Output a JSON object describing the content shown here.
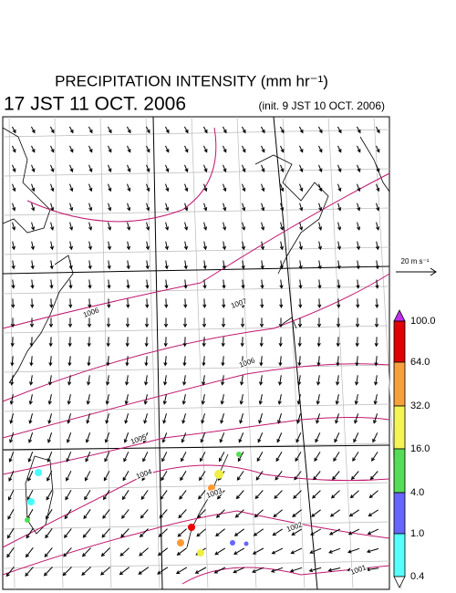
{
  "header": {
    "title": "PRECIPITATION INTENSITY (mm hr⁻¹)",
    "valid_time": "17 JST 11 OCT. 2006",
    "init_time": "(init. 9 JST 10 OCT. 2006)"
  },
  "scale_arrow": {
    "label": "20 m s⁻¹"
  },
  "colorbar": {
    "labels": [
      "100.0",
      "64.0",
      "32.0",
      "16.0",
      "4.0",
      "1.0",
      "0.4"
    ]
  },
  "contour_labels": [
    "1006",
    "1007",
    "1006",
    "1005",
    "1004",
    "1003",
    "1002",
    "1001"
  ]
}
